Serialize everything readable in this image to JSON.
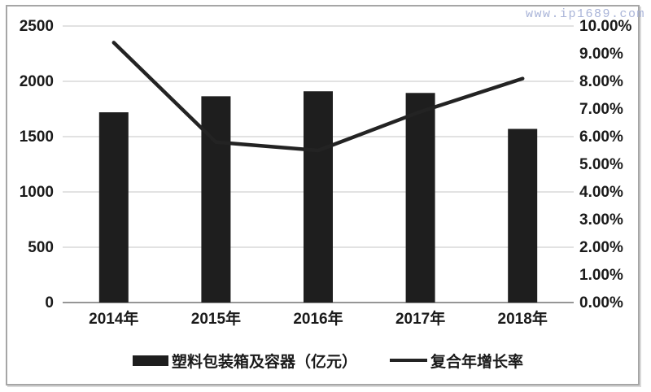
{
  "watermark": "www.ip1689.com",
  "chart_data": {
    "type": "combo",
    "title": "",
    "categories": [
      "2014年",
      "2015年",
      "2016年",
      "2017年",
      "2018年"
    ],
    "series": [
      {
        "name": "塑料包装箱及容器（亿元）",
        "type": "bar",
        "axis": "left",
        "values": [
          1720,
          1865,
          1910,
          1895,
          1570
        ]
      },
      {
        "name": "复合年增长率",
        "type": "line",
        "axis": "right",
        "unit": "%",
        "values": [
          9.4,
          5.8,
          5.5,
          6.9,
          8.1
        ]
      }
    ],
    "left_axis": {
      "min": 0,
      "max": 2500,
      "step": 500,
      "ticks": [
        "2500",
        "2000",
        "1500",
        "1000",
        "500",
        "0"
      ]
    },
    "right_axis": {
      "min": 0,
      "max": 10,
      "step": 1,
      "ticks": [
        "10.00%",
        "9.00%",
        "8.00%",
        "7.00%",
        "6.00%",
        "5.00%",
        "4.00%",
        "3.00%",
        "2.00%",
        "1.00%",
        "0.00%"
      ]
    },
    "grid": "horizontal-major-only",
    "legend_position": "bottom",
    "colors": {
      "bar": "#1e1e1e",
      "line": "#232323",
      "grid": "#c6c6c6",
      "axis_line": "#969696",
      "text": "#1a1a1a",
      "watermark": "#a9b4d8"
    }
  }
}
